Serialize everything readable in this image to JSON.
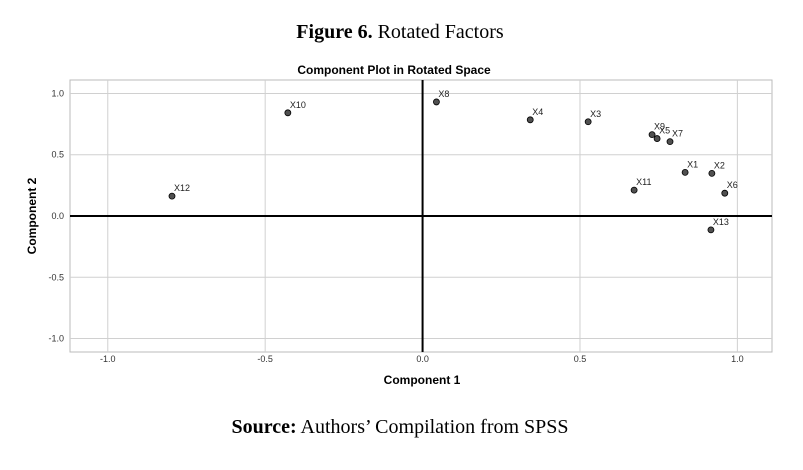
{
  "chart_data": {
    "type": "scatter",
    "caption_label": "Figure 6.",
    "caption": "Rotated Factors",
    "title": "Component Plot in Rotated Space",
    "xlabel": "Component 1",
    "ylabel": "Component 2",
    "labels": [
      "X12",
      "X10",
      "X8",
      "X4",
      "X3",
      "X9",
      "X5",
      "X7",
      "X1",
      "X2",
      "X11",
      "X6",
      "X13"
    ],
    "x": [
      -0.796,
      -0.428,
      0.044,
      0.342,
      0.526,
      0.729,
      0.745,
      0.786,
      0.834,
      0.919,
      0.672,
      0.96,
      0.916
    ],
    "y": [
      0.162,
      0.842,
      0.931,
      0.785,
      0.769,
      0.664,
      0.632,
      0.607,
      0.356,
      0.348,
      0.211,
      0.186,
      -0.113
    ],
    "color": "#505050",
    "xlim": [
      -1.12,
      1.11
    ],
    "ylim": [
      -1.11,
      1.11
    ],
    "xticks": [
      {
        "value": -1,
        "label": "-1.0"
      },
      -0.5,
      {
        "value": 0,
        "label": "0.0"
      },
      0.5,
      {
        "value": 1,
        "label": "1.0"
      }
    ],
    "yticks": [
      {
        "value": -1,
        "label": "-1.0"
      },
      -0.5,
      {
        "value": 0,
        "label": "0.0"
      },
      0.5,
      {
        "value": 1,
        "label": "1.0"
      }
    ],
    "grid": true,
    "source_label": "Source:",
    "source": "Authors’ Compilation from SPSS"
  }
}
